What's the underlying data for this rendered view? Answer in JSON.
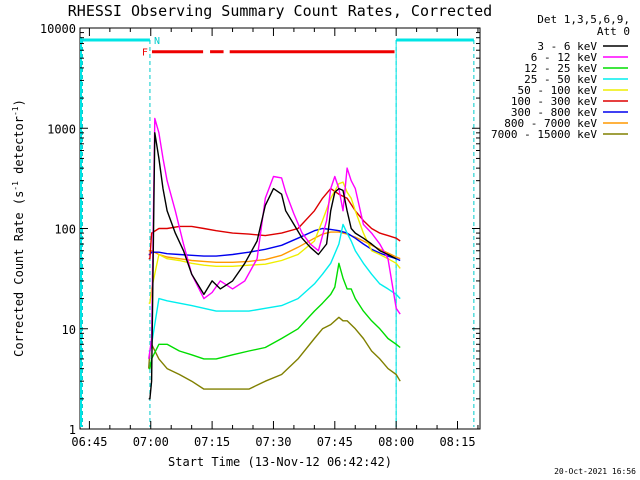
{
  "chart_data": {
    "type": "line",
    "title": "RHESSI Observing Summary Count Rates, Corrected",
    "xlabel": "Start Time (13-Nov-12 06:42:42)",
    "ylabel_main": "Corrected Count Rate (s",
    "ylabel_sup": "-1",
    "ylabel_mid": " detector",
    "ylabel_sup2": "-1",
    "ylabel_end": ")",
    "ylog": true,
    "ylim": [
      1,
      10000
    ],
    "xlim_minutes_from_0640": [
      2.7,
      100.5
    ],
    "x_ticks": [
      {
        "label": "06:45",
        "minutes": 5
      },
      {
        "label": "07:00",
        "minutes": 20
      },
      {
        "label": "07:15",
        "minutes": 35
      },
      {
        "label": "07:30",
        "minutes": 50
      },
      {
        "label": "07:45",
        "minutes": 65
      },
      {
        "label": "08:00",
        "minutes": 80
      },
      {
        "label": "08:15",
        "minutes": 95
      }
    ],
    "y_ticks": [
      {
        "label": "1",
        "value": 1
      },
      {
        "label": "10",
        "value": 10
      },
      {
        "label": "100",
        "value": 100
      },
      {
        "label": "1000",
        "value": 1000
      },
      {
        "label": "10000",
        "value": 10000
      }
    ],
    "legend_header": [
      "Det 1,3,5,6,9,",
      "Att 0"
    ],
    "legend_placement": "right",
    "flag_labels": {
      "f": "F",
      "n": "N"
    },
    "night_markers_minutes": [
      3.3,
      19.8,
      80.0,
      99.0
    ],
    "flare_bar_minutes": [
      [
        20.3,
        32.8
      ],
      [
        34.5,
        37.8
      ],
      [
        39.3,
        79.6
      ]
    ],
    "flare_bar_value": 5800,
    "series": [
      {
        "name": "3 - 6 keV",
        "color": "#000000",
        "x": [
          19.5,
          19.8,
          20.2,
          21,
          22,
          23,
          24,
          26,
          28,
          30,
          33,
          35,
          37,
          40,
          43,
          46,
          48,
          50,
          52,
          53,
          55,
          57,
          59,
          61,
          63,
          64,
          65,
          66,
          67,
          68,
          69,
          70,
          72,
          74,
          76,
          78,
          80
        ],
        "values": [
          2,
          2,
          3,
          900,
          500,
          250,
          150,
          90,
          60,
          35,
          22,
          30,
          25,
          30,
          45,
          75,
          170,
          250,
          220,
          150,
          110,
          80,
          65,
          55,
          70,
          150,
          230,
          250,
          240,
          150,
          100,
          90,
          80,
          70,
          60,
          55,
          50
        ]
      },
      {
        "name": "6 - 12 keV",
        "color": "#ff00ff",
        "x": [
          19.5,
          19.8,
          20.2,
          21,
          22,
          23,
          24,
          26,
          28,
          30,
          33,
          35,
          37,
          40,
          43,
          46,
          48,
          50,
          52,
          53,
          55,
          57,
          59,
          61,
          63,
          64,
          65,
          66,
          67,
          68,
          69,
          70,
          72,
          74,
          76,
          78,
          80,
          81
        ],
        "values": [
          5,
          6,
          8,
          1250,
          900,
          500,
          300,
          150,
          70,
          35,
          20,
          23,
          30,
          25,
          30,
          50,
          200,
          330,
          320,
          230,
          140,
          90,
          70,
          60,
          120,
          250,
          330,
          250,
          150,
          400,
          300,
          250,
          110,
          90,
          70,
          50,
          16,
          14
        ]
      },
      {
        "name": "12 - 25 keV",
        "color": "#00dd00",
        "x": [
          19.5,
          19.8,
          20.2,
          22,
          24,
          27,
          30,
          33,
          36,
          40,
          44,
          48,
          52,
          56,
          60,
          62,
          64,
          65,
          66,
          67,
          68,
          69,
          70,
          72,
          74,
          76,
          78,
          80,
          81
        ],
        "values": [
          4,
          4,
          5,
          7,
          7,
          6,
          5.5,
          5,
          5,
          5.5,
          6,
          6.5,
          8,
          10,
          15,
          18,
          22,
          26,
          45,
          32,
          25,
          25,
          20,
          15,
          12,
          10,
          8,
          7,
          6.5
        ]
      },
      {
        "name": "25 - 50 keV",
        "color": "#00eeee",
        "x": [
          19.5,
          19.8,
          20.2,
          22,
          24,
          27,
          30,
          33,
          36,
          40,
          44,
          48,
          52,
          56,
          60,
          62,
          64,
          66,
          67,
          68,
          69,
          70,
          72,
          74,
          76,
          78,
          80,
          81
        ],
        "values": [
          6,
          6,
          7,
          20,
          19,
          18,
          17,
          16,
          15,
          15,
          15,
          16,
          17,
          20,
          28,
          35,
          45,
          70,
          110,
          90,
          75,
          60,
          45,
          35,
          28,
          25,
          22,
          20
        ]
      },
      {
        "name": "50 - 100 keV",
        "color": "#eeee00",
        "x": [
          19.5,
          19.8,
          20.2,
          22,
          24,
          27,
          30,
          33,
          36,
          40,
          44,
          48,
          52,
          56,
          60,
          62,
          64,
          66,
          67,
          68,
          69,
          70,
          72,
          74,
          76,
          78,
          80,
          81
        ],
        "values": [
          18,
          18,
          25,
          55,
          50,
          48,
          45,
          43,
          42,
          42,
          43,
          44,
          48,
          55,
          75,
          120,
          200,
          280,
          290,
          230,
          200,
          150,
          90,
          60,
          55,
          50,
          45,
          40
        ]
      },
      {
        "name": "100 - 300 keV",
        "color": "#dd0000",
        "x": [
          19.5,
          19.8,
          20.2,
          22,
          24,
          27,
          30,
          33,
          36,
          40,
          44,
          48,
          52,
          56,
          60,
          62,
          64,
          66,
          68,
          70,
          72,
          74,
          76,
          78,
          80,
          81
        ],
        "values": [
          50,
          50,
          90,
          100,
          100,
          105,
          105,
          100,
          95,
          90,
          88,
          85,
          90,
          100,
          150,
          200,
          250,
          220,
          200,
          150,
          120,
          100,
          90,
          85,
          80,
          75
        ]
      },
      {
        "name": "300 - 800 keV",
        "color": "#0000ee",
        "x": [
          19.5,
          19.8,
          20.2,
          22,
          24,
          27,
          30,
          33,
          36,
          40,
          44,
          48,
          52,
          56,
          60,
          62,
          64,
          66,
          68,
          70,
          72,
          74,
          76,
          78,
          80,
          81
        ],
        "values": [
          55,
          55,
          58,
          58,
          56,
          55,
          54,
          53,
          53,
          55,
          58,
          62,
          68,
          80,
          95,
          100,
          98,
          95,
          90,
          80,
          70,
          62,
          57,
          53,
          50,
          48
        ]
      },
      {
        "name": "800 - 7000 keV",
        "color": "#ff9900",
        "x": [
          19.5,
          19.8,
          20.2,
          22,
          24,
          27,
          30,
          33,
          36,
          40,
          44,
          48,
          52,
          56,
          60,
          62,
          64,
          66,
          68,
          70,
          72,
          74,
          76,
          78,
          80,
          81
        ],
        "values": [
          60,
          60,
          60,
          55,
          52,
          50,
          48,
          47,
          46,
          46,
          47,
          49,
          54,
          65,
          80,
          88,
          92,
          92,
          88,
          82,
          75,
          68,
          62,
          57,
          52,
          50
        ]
      },
      {
        "name": "7000 - 15000 keV",
        "color": "#808000",
        "x": [
          19.5,
          19.8,
          20.2,
          22,
          24,
          27,
          30,
          33,
          36,
          40,
          44,
          48,
          52,
          56,
          60,
          62,
          64,
          66,
          67,
          68,
          70,
          72,
          74,
          76,
          78,
          80,
          81
        ],
        "values": [
          4,
          6,
          7,
          5,
          4,
          3.5,
          3,
          2.5,
          2.5,
          2.5,
          2.5,
          3,
          3.5,
          5,
          8,
          10,
          11,
          13,
          12,
          12,
          10,
          8,
          6,
          5,
          4,
          3.5,
          3
        ]
      }
    ]
  },
  "footer": {
    "timestamp": "20-Oct-2021 16:56"
  }
}
